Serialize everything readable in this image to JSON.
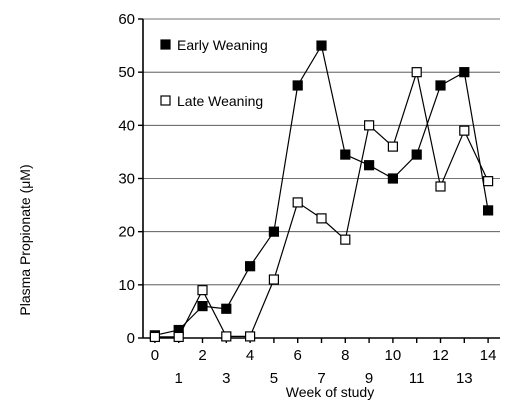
{
  "chart_data": {
    "type": "line",
    "xlabel": "Week of study",
    "ylabel": "Plasma Propionate (μM)",
    "x": [
      0,
      1,
      2,
      3,
      4,
      5,
      6,
      7,
      8,
      9,
      10,
      11,
      12,
      13,
      14
    ],
    "xlim": [
      -0.5,
      14.5
    ],
    "ylim": [
      0,
      60
    ],
    "yticks": [
      0,
      10,
      20,
      30,
      40,
      50,
      60
    ],
    "grid": "horizontal",
    "legend_position": "top-left",
    "series": [
      {
        "name": "Early Weaning",
        "marker": "filled-square",
        "color": "#000000",
        "values": [
          0.5,
          1.5,
          6,
          5.5,
          13.5,
          20,
          47.5,
          55,
          34.5,
          32.5,
          30,
          34.5,
          47.5,
          50,
          24
        ]
      },
      {
        "name": "Late Weaning",
        "marker": "open-square",
        "color": "#000000",
        "values": [
          0.2,
          0.2,
          9,
          0.3,
          0.3,
          11,
          25.5,
          22.5,
          18.5,
          40,
          36,
          50,
          28.5,
          39,
          29.5
        ]
      }
    ]
  }
}
